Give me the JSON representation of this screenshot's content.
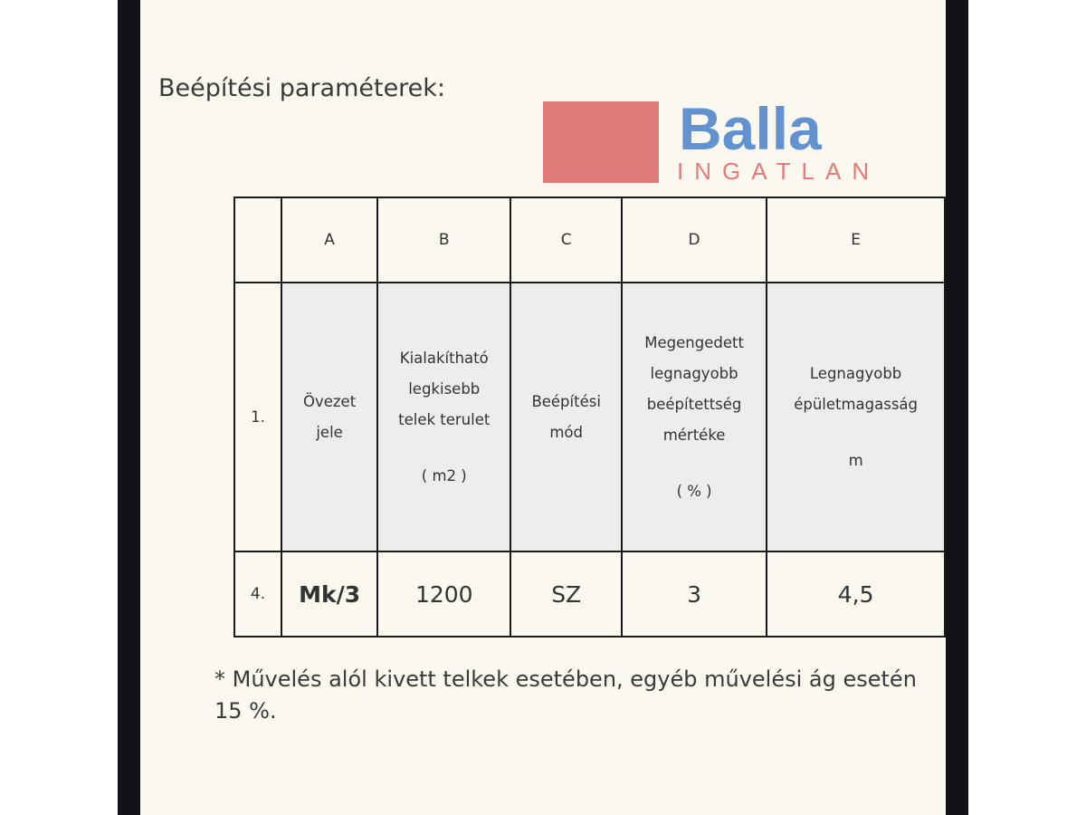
{
  "title": "Beépítési paraméterek:",
  "table": {
    "columns": [
      "",
      "A",
      "B",
      "C",
      "D",
      "E"
    ],
    "header_row": {
      "number": "1.",
      "cells": [
        {
          "lines": [
            "Övezet",
            "jele"
          ],
          "unit": ""
        },
        {
          "lines": [
            "Kialakítható",
            "legkisebb",
            "telek terulet"
          ],
          "unit": "( m2 )"
        },
        {
          "lines": [
            "Beépítési",
            "mód"
          ],
          "unit": ""
        },
        {
          "lines": [
            "Megengedett",
            "legnagyobb",
            "beépítettség",
            "mértéke"
          ],
          "unit": "( % )"
        },
        {
          "lines": [
            "Legnagyobb",
            "épületmagasság"
          ],
          "unit": "m"
        }
      ]
    },
    "data_row": {
      "number": "4.",
      "values": [
        "Mk/3",
        "1200",
        "SZ",
        "3",
        "4,5"
      ]
    }
  },
  "footnote": "* Művelés alól kivett telkek esetében, egyéb művelési ág esetén 15 %.",
  "watermark": {
    "brand": "Balla",
    "sub": "INGATLAN"
  }
}
